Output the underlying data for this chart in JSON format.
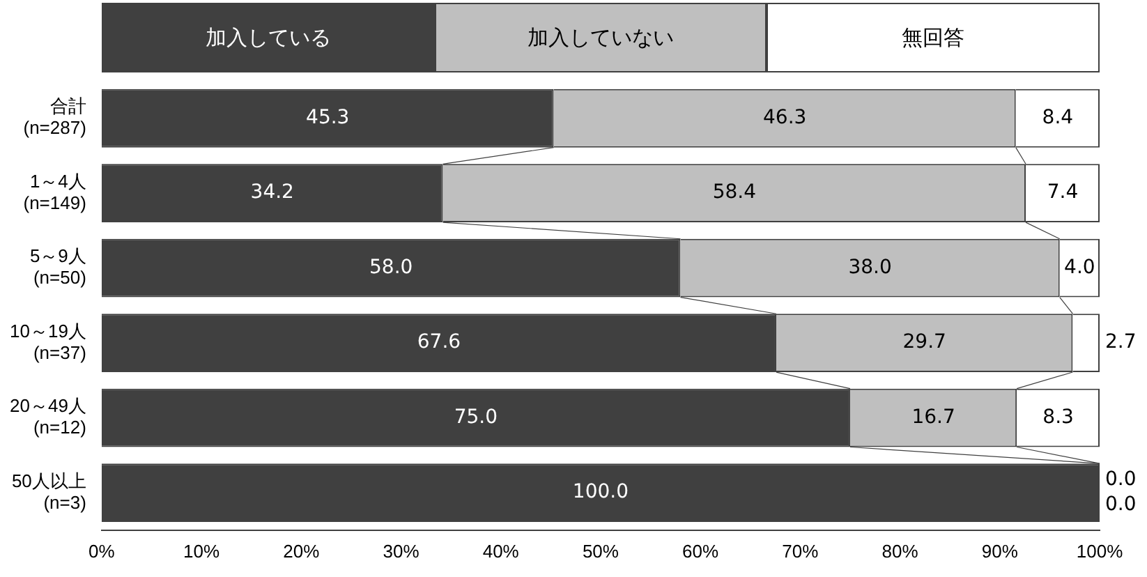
{
  "chart_data": {
    "type": "bar",
    "orientation": "horizontal",
    "stacked": true,
    "grid": false,
    "legend": "top",
    "categories": [
      "合計\n(n=287)",
      "1～4人\n(n=149)",
      "5～9人\n(n=50)",
      "10～19人\n(n=37)",
      "20～49人\n(n=12)",
      "50人以上\n(n=3)"
    ],
    "series": [
      {
        "name": "加入している",
        "color": "#404040",
        "values": [
          45.3,
          34.2,
          58.0,
          67.6,
          75.0,
          100.0
        ],
        "value_labels": [
          "45.3",
          "34.2",
          "58.0",
          "67.6",
          "75.0",
          "100.0"
        ]
      },
      {
        "name": "加入していない",
        "color": "#bfbfbf",
        "values": [
          46.3,
          58.4,
          38.0,
          29.7,
          16.7,
          0.0
        ],
        "value_labels": [
          "46.3",
          "58.4",
          "38.0",
          "29.7",
          "16.7",
          "0.0"
        ]
      },
      {
        "name": "無回答",
        "color": "#ffffff",
        "values": [
          8.4,
          7.4,
          4.0,
          2.7,
          8.3,
          0.0
        ],
        "value_labels": [
          "8.4",
          "7.4",
          "4.0",
          "2.7",
          "8.3",
          "0.0"
        ]
      }
    ],
    "xlim": [
      0,
      100
    ],
    "xticks": [
      {
        "value": 0,
        "label": "0%"
      },
      {
        "value": 10,
        "label": "10%"
      },
      {
        "value": 20,
        "label": "20%"
      },
      {
        "value": 30,
        "label": "30%"
      },
      {
        "value": 40,
        "label": "40%"
      },
      {
        "value": 50,
        "label": "50%"
      },
      {
        "value": 60,
        "label": "60%"
      },
      {
        "value": 70,
        "label": "70%"
      },
      {
        "value": 80,
        "label": "80%"
      },
      {
        "value": 90,
        "label": "90%"
      },
      {
        "value": 100,
        "label": "100%"
      }
    ]
  }
}
